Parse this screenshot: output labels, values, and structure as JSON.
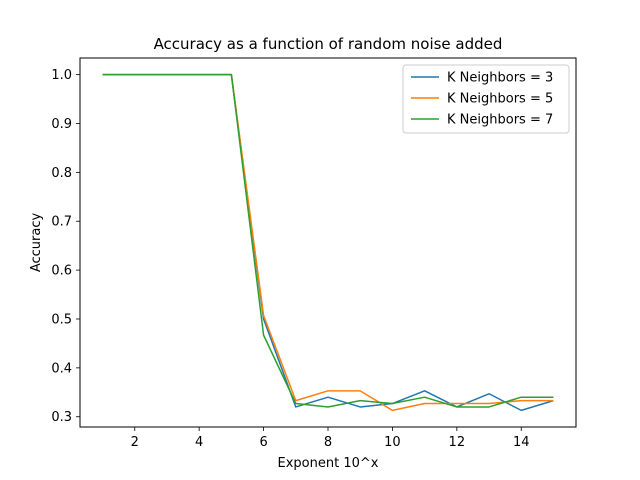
{
  "chart_data": {
    "type": "line",
    "title": "Accuracy as a function of random noise added",
    "xlabel": "Exponent 10^x",
    "ylabel": "Accuracy",
    "xlim": [
      0.3,
      15.7
    ],
    "ylim": [
      0.279,
      1.034
    ],
    "xticks": [
      2,
      4,
      6,
      8,
      10,
      12,
      14
    ],
    "yticks": [
      0.3,
      0.4,
      0.5,
      0.6,
      0.7,
      0.8,
      0.9,
      1.0
    ],
    "ytick_labels": [
      "0.3",
      "0.4",
      "0.5",
      "0.6",
      "0.7",
      "0.8",
      "0.9",
      "1.0"
    ],
    "grid": false,
    "legend_position": "top-right",
    "x": [
      1,
      2,
      3,
      4,
      5,
      6,
      7,
      8,
      9,
      10,
      11,
      12,
      13,
      14,
      15
    ],
    "series": [
      {
        "name": "K Neighbors = 3",
        "color": "#1f77b4",
        "values": [
          1.0,
          1.0,
          1.0,
          1.0,
          1.0,
          0.5,
          0.32,
          0.34,
          0.32,
          0.327,
          0.353,
          0.32,
          0.347,
          0.313,
          0.333
        ]
      },
      {
        "name": "K Neighbors = 5",
        "color": "#ff7f0e",
        "values": [
          1.0,
          1.0,
          1.0,
          1.0,
          1.0,
          0.507,
          0.333,
          0.353,
          0.353,
          0.313,
          0.327,
          0.327,
          0.327,
          0.333,
          0.333
        ]
      },
      {
        "name": "K Neighbors = 7",
        "color": "#2ca02c",
        "values": [
          1.0,
          1.0,
          1.0,
          1.0,
          1.0,
          0.467,
          0.327,
          0.32,
          0.333,
          0.327,
          0.34,
          0.32,
          0.32,
          0.34,
          0.34
        ]
      }
    ]
  }
}
